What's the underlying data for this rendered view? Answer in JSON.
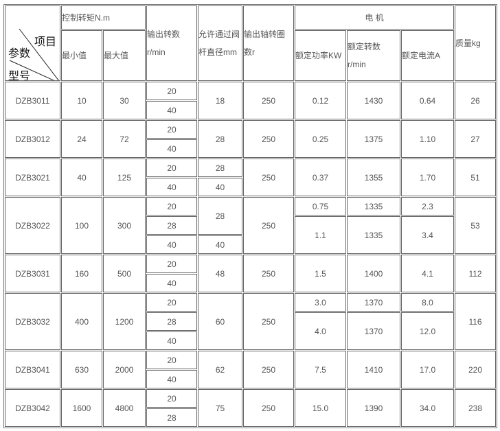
{
  "header": {
    "diag_item": "项目",
    "diag_param": "参数",
    "diag_model": "型号",
    "torque": "控制转矩N.m",
    "torque_min": "最小值",
    "torque_max": "最大值",
    "output_speed_l1": "输出转数",
    "output_speed_l2": "r/min",
    "valve_l1": "允许通过阀",
    "valve_l2": "杆直径mm",
    "turns_l1": "输出轴转圈",
    "turns_l2": "数r",
    "motor": "电 机",
    "power": "额定功率KW",
    "rpm_l1": "额定转数",
    "rpm_l2": "r/min",
    "current": "额定电流A",
    "mass": "质量kg"
  },
  "models": [
    {
      "model": "DZB3011",
      "tmin": "10",
      "tmax": "30",
      "speeds": [
        "20",
        "40"
      ],
      "valve": [
        "18"
      ],
      "turns": "250",
      "power": [
        "0.12"
      ],
      "rpm": [
        "1430"
      ],
      "current": [
        "0.64"
      ],
      "mass": "26"
    },
    {
      "model": "DZB3012",
      "tmin": "24",
      "tmax": "72",
      "speeds": [
        "20",
        "40"
      ],
      "valve": [
        "28"
      ],
      "turns": "250",
      "power": [
        "0.25"
      ],
      "rpm": [
        "1375"
      ],
      "current": [
        "1.10"
      ],
      "mass": "27"
    },
    {
      "model": "DZB3021",
      "tmin": "40",
      "tmax": "125",
      "speeds": [
        "20",
        "40"
      ],
      "valve": [
        "28",
        "40"
      ],
      "turns": "250",
      "power": [
        "0.37"
      ],
      "rpm": [
        "1355"
      ],
      "current": [
        "1.70"
      ],
      "mass": "51"
    },
    {
      "model": "DZB3022",
      "tmin": "100",
      "tmax": "300",
      "speeds": [
        "20",
        "28",
        "40"
      ],
      "valve": [
        "28",
        "40"
      ],
      "turns": "250",
      "power": [
        "0.75",
        "1.1"
      ],
      "rpm": [
        "1335",
        "1335"
      ],
      "current": [
        "2.3",
        "3.4"
      ],
      "mass": "53"
    },
    {
      "model": "DZB3031",
      "tmin": "160",
      "tmax": "500",
      "speeds": [
        "20",
        "40"
      ],
      "valve": [
        "48"
      ],
      "turns": "250",
      "power": [
        "1.5"
      ],
      "rpm": [
        "1400"
      ],
      "current": [
        "4.1"
      ],
      "mass": "112"
    },
    {
      "model": "DZB3032",
      "tmin": "400",
      "tmax": "1200",
      "speeds": [
        "20",
        "28",
        "40"
      ],
      "valve": [
        "60"
      ],
      "turns": "250",
      "power": [
        "3.0",
        "4.0"
      ],
      "rpm": [
        "1370",
        "1370"
      ],
      "current": [
        "8.0",
        "12.0"
      ],
      "mass": "116"
    },
    {
      "model": "DZB3041",
      "tmin": "630",
      "tmax": "2000",
      "speeds": [
        "20",
        "40"
      ],
      "valve": [
        "62"
      ],
      "turns": "250",
      "power": [
        "7.5"
      ],
      "rpm": [
        "1410"
      ],
      "current": [
        "17.0"
      ],
      "mass": "220"
    },
    {
      "model": "DZB3042",
      "tmin": "1600",
      "tmax": "4800",
      "speeds": [
        "20",
        "28"
      ],
      "valve": [
        "75"
      ],
      "turns": "250",
      "power": [
        "15.0"
      ],
      "rpm": [
        "1390"
      ],
      "current": [
        "34.0"
      ],
      "mass": "238"
    }
  ]
}
